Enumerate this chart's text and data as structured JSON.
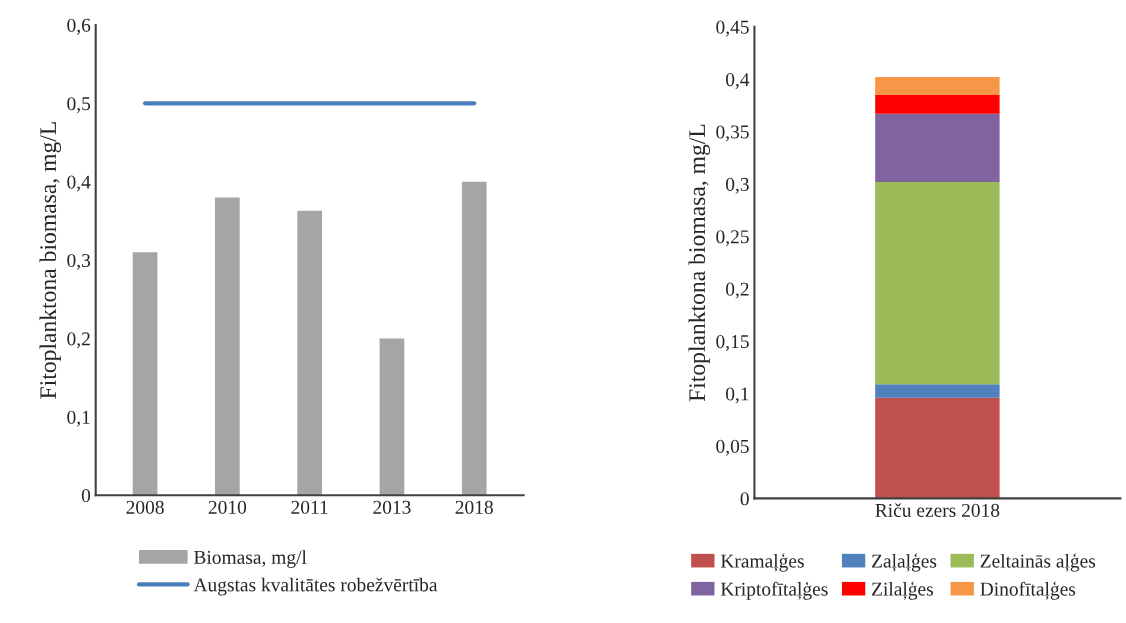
{
  "chart_data": [
    {
      "type": "bar",
      "categories": [
        "2008",
        "2010",
        "2011",
        "2013",
        "2018"
      ],
      "ylabel": "Fitoplanktona biomasa, mg/L",
      "ylim": [
        0,
        0.6
      ],
      "yticks": [
        0,
        {
          "value": 0.1,
          "label": "0,1"
        },
        {
          "value": 0.2,
          "label": "0,2"
        },
        {
          "value": 0.3,
          "label": "0,3"
        },
        {
          "value": 0.4,
          "label": "0,4"
        },
        {
          "value": 0.5,
          "label": "0,5"
        },
        {
          "value": 0.6,
          "label": "0,6"
        }
      ],
      "series": [
        {
          "name": "Biomasa, mg/l",
          "type": "bar",
          "color": "#a5a5a5",
          "values": [
            0.31,
            0.38,
            0.363,
            0.2,
            0.4
          ]
        },
        {
          "name": "Augstas kvalitātes robežvērtība",
          "type": "line",
          "color": "#4a7ebb",
          "values": [
            0.5,
            0.5,
            0.5,
            0.5,
            0.5
          ]
        }
      ],
      "legend": "bottom",
      "grid": false
    },
    {
      "type": "bar",
      "stacked": true,
      "categories": [
        "Riču ezers 2018"
      ],
      "ylabel": "Fitoplanktona biomasa, mg/L",
      "ylim": [
        0,
        0.45
      ],
      "yticks": [
        0,
        {
          "value": 0.05,
          "label": "0,05"
        },
        {
          "value": 0.1,
          "label": "0,1"
        },
        {
          "value": 0.15,
          "label": "0,15"
        },
        {
          "value": 0.2,
          "label": "0,2"
        },
        {
          "value": 0.25,
          "label": "0,25"
        },
        {
          "value": 0.3,
          "label": "0,3"
        },
        {
          "value": 0.35,
          "label": "0,35"
        },
        {
          "value": 0.4,
          "label": "0,4"
        },
        {
          "value": 0.45,
          "label": "0,45"
        }
      ],
      "series": [
        {
          "name": "Kramaļģes",
          "color": "#c0504d",
          "values": [
            0.096
          ]
        },
        {
          "name": "Zaļaļģes",
          "color": "#4f81bd",
          "values": [
            0.013
          ]
        },
        {
          "name": "Zeltainās aļģes",
          "color": "#9bbb59",
          "values": [
            0.193
          ]
        },
        {
          "name": "Kriptofītaļģes",
          "color": "#8064a2",
          "values": [
            0.065
          ]
        },
        {
          "name": "Zilaļģes",
          "color": "#ff0000",
          "values": [
            0.018
          ]
        },
        {
          "name": "Dinofītaļģes",
          "color": "#f79646",
          "values": [
            0.017
          ]
        }
      ],
      "legend": "bottom",
      "grid": false
    }
  ]
}
